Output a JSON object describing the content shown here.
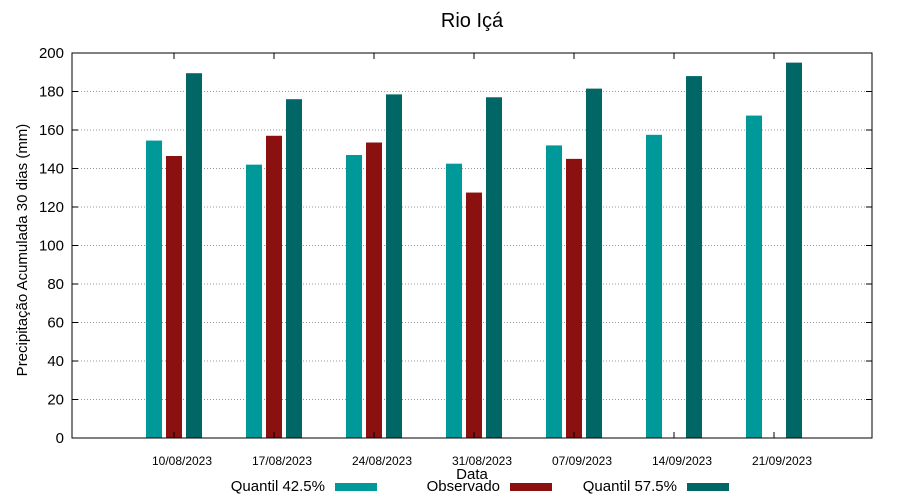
{
  "chart_data": {
    "type": "bar",
    "title": "Rio Içá",
    "xlabel": "Data",
    "ylabel": "Precipitação Acumulada 30 dias (mm)",
    "ylim": [
      0,
      200
    ],
    "yticks": [
      0,
      20,
      40,
      60,
      80,
      100,
      120,
      140,
      160,
      180,
      200
    ],
    "grid": true,
    "legend_position": "bottom",
    "categories": [
      "10/08/2023",
      "17/08/2023",
      "24/08/2023",
      "31/08/2023",
      "07/09/2023",
      "14/09/2023",
      "21/09/2023"
    ],
    "series": [
      {
        "name": "Quantil 42.5%",
        "color": "#009999",
        "values": [
          154.5,
          142,
          147,
          142.5,
          152,
          157.5,
          167.5
        ]
      },
      {
        "name": "Observado",
        "color": "#8b1010",
        "values": [
          146.5,
          157,
          153.5,
          127.5,
          145,
          null,
          null
        ]
      },
      {
        "name": "Quantil 57.5%",
        "color": "#006666",
        "values": [
          189.5,
          176,
          178.5,
          177,
          181.5,
          188,
          195
        ]
      }
    ]
  }
}
